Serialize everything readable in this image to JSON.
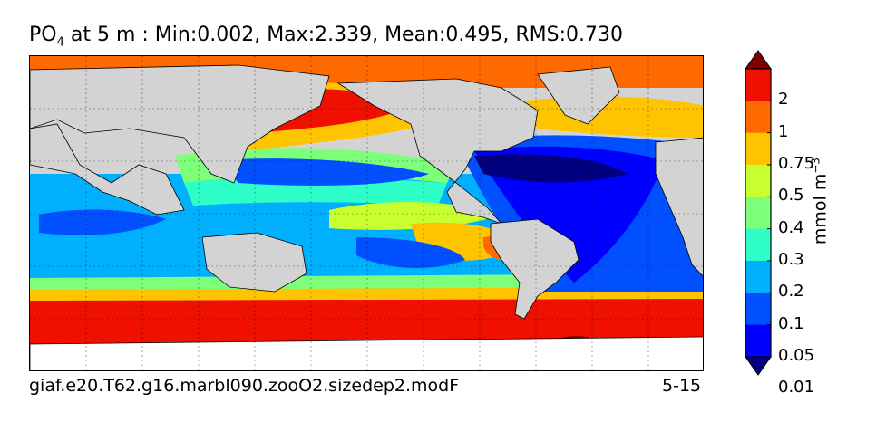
{
  "title": {
    "variable_main": "PO",
    "variable_sub": "4",
    "rest": " at 5 m : Min:0.002, Max:2.339, Mean:0.495, RMS:0.730"
  },
  "footer": {
    "case_name": "giaf.e20.T62.g16.marbl090.zooO2.sizedep2.modF",
    "years": "5-15"
  },
  "colorbar": {
    "units_main": "mmol m",
    "units_exp": "−3",
    "tick_labels": [
      "2",
      "1",
      "0.75",
      "0.5",
      "0.4",
      "0.3",
      "0.2",
      "0.1",
      "0.05",
      "0.01"
    ],
    "level_colors": [
      "#800000",
      "#f01000",
      "#ff6a00",
      "#ffc400",
      "#c8ff2e",
      "#7dff7a",
      "#2effc9",
      "#00b0ff",
      "#0050ff",
      "#0000ff",
      "#00007f"
    ],
    "extend": "both"
  },
  "map": {
    "land_color": "#d3d3d3",
    "projection": "global lat-lon",
    "grid": true
  }
}
